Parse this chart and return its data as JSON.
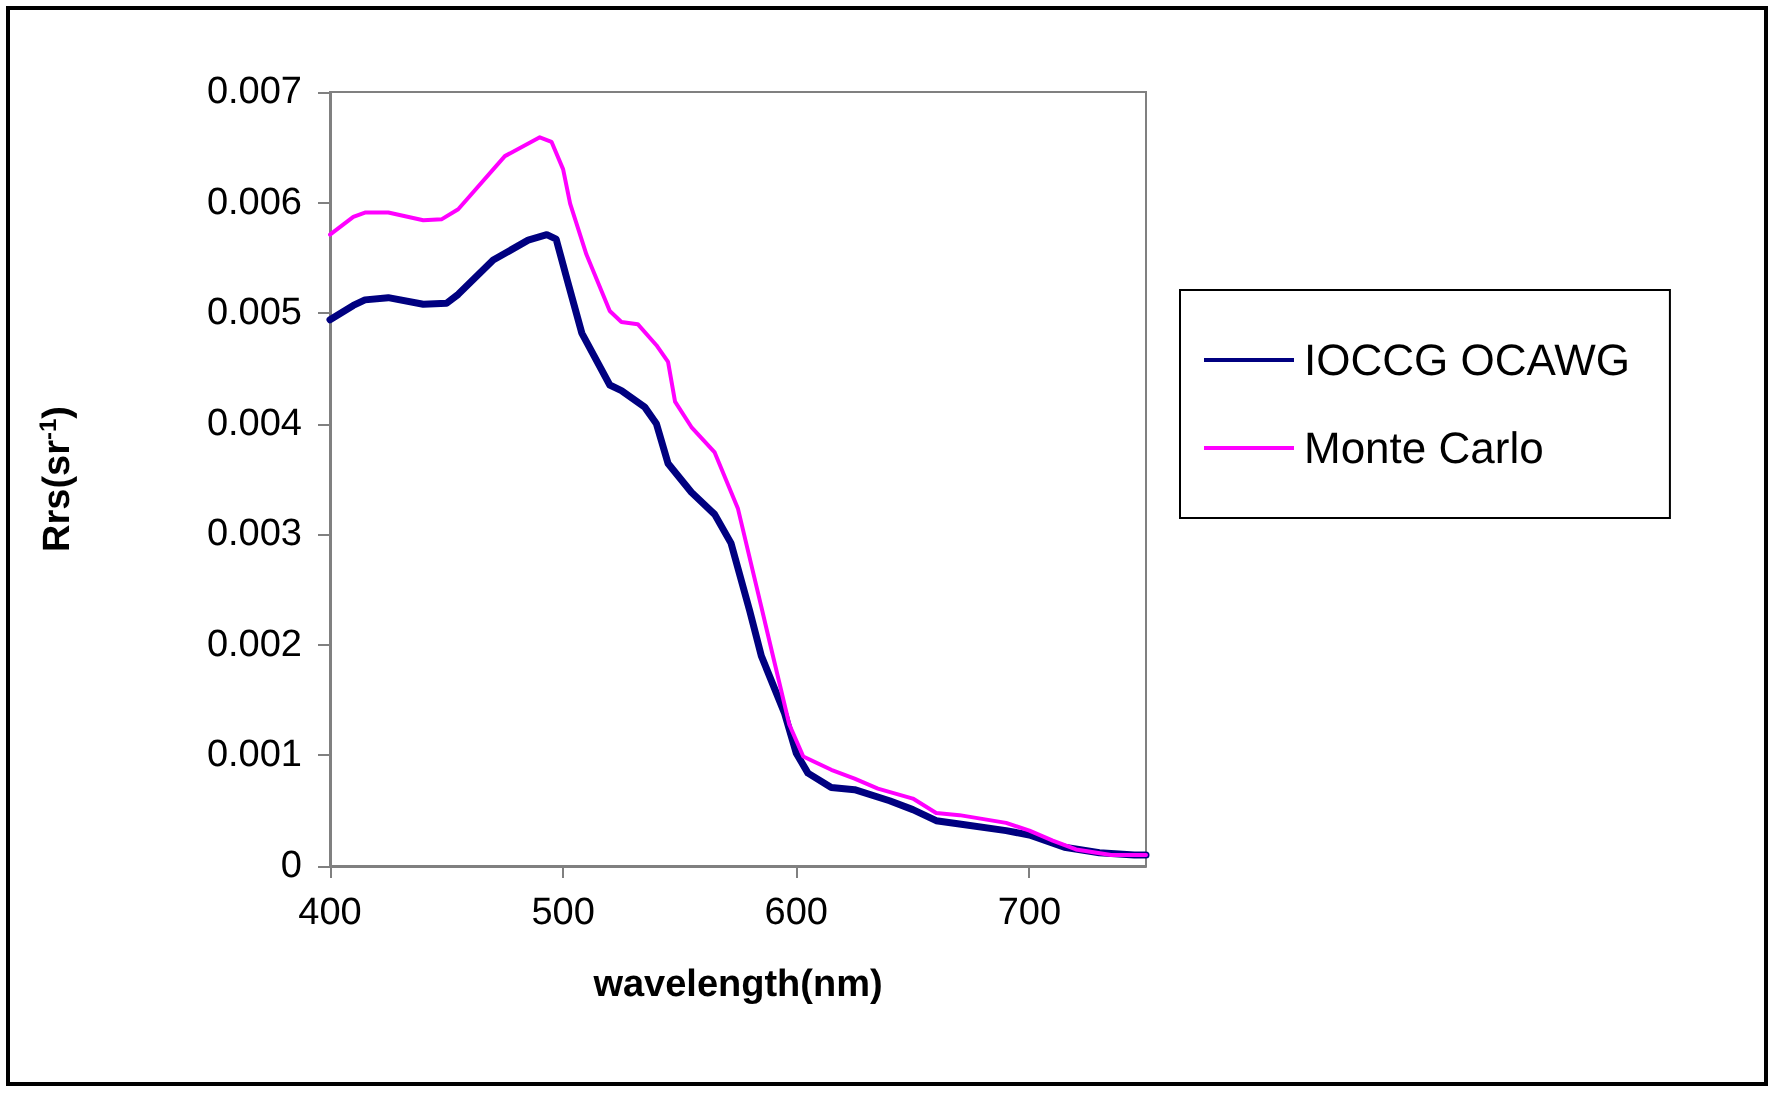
{
  "chart_data": {
    "type": "line",
    "xlabel": "wavelength(nm)",
    "ylabel": "Rrs(sr$^{-1}$)",
    "xlim": [
      400,
      750
    ],
    "xticks": [
      400,
      500,
      600,
      700
    ],
    "ylim": [
      0,
      0.007
    ],
    "yticks": [
      0,
      0.001,
      0.002,
      0.003,
      0.004,
      0.005,
      0.006,
      0.007
    ],
    "grid": false,
    "legend": "right",
    "marker": "none",
    "line_style": "solid",
    "series": [
      {
        "name": "IOCCG OCAWG",
        "color": "#000080",
        "x": [
          400,
          410,
          415,
          425,
          440,
          450,
          455,
          470,
          485,
          493,
          497,
          502,
          508,
          520,
          525,
          535,
          540,
          545,
          555,
          565,
          572,
          580,
          585,
          595,
          600,
          605,
          615,
          625,
          640,
          650,
          660,
          670,
          690,
          700,
          715,
          730,
          745,
          750
        ],
        "values": [
          0.00494,
          0.00507,
          0.00512,
          0.00514,
          0.00508,
          0.00509,
          0.00517,
          0.00548,
          0.00566,
          0.00571,
          0.00567,
          0.00528,
          0.00482,
          0.00435,
          0.0043,
          0.00415,
          0.004,
          0.00364,
          0.00338,
          0.00318,
          0.00292,
          0.00231,
          0.0019,
          0.00138,
          0.00102,
          0.00084,
          0.00071,
          0.00069,
          0.00059,
          0.00051,
          0.00041,
          0.00038,
          0.00032,
          0.00028,
          0.00017,
          0.00012,
          0.0001,
          0.0001
        ]
      },
      {
        "name": "Monte Carlo",
        "color": "#ff00ff",
        "x": [
          400,
          410,
          415,
          425,
          440,
          448,
          455,
          475,
          490,
          495,
          500,
          503,
          510,
          520,
          525,
          532,
          540,
          545,
          548,
          555,
          565,
          575,
          582,
          590,
          597,
          603,
          615,
          625,
          635,
          650,
          660,
          670,
          690,
          700,
          710,
          720,
          735,
          745,
          750
        ],
        "values": [
          0.00571,
          0.00587,
          0.00591,
          0.00591,
          0.00584,
          0.00585,
          0.00594,
          0.00642,
          0.00659,
          0.00655,
          0.0063,
          0.00599,
          0.00553,
          0.00502,
          0.00492,
          0.0049,
          0.00471,
          0.00456,
          0.0042,
          0.00397,
          0.00374,
          0.00323,
          0.00261,
          0.0019,
          0.00128,
          0.00099,
          0.00087,
          0.00079,
          0.0007,
          0.00061,
          0.00048,
          0.00046,
          0.00039,
          0.00032,
          0.00023,
          0.00015,
          0.0001,
          0.0001,
          0.0001
        ]
      }
    ]
  }
}
